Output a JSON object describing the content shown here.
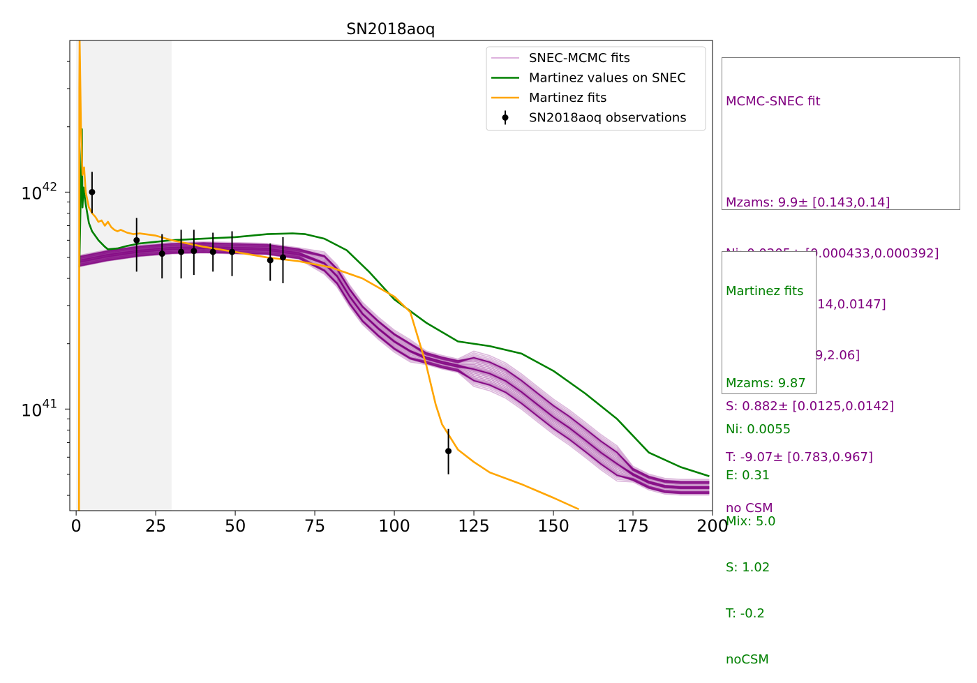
{
  "chart_data": {
    "type": "line",
    "title": "SN2018aoq",
    "xlabel": "",
    "ylabel": "",
    "xlim": [
      -2,
      200
    ],
    "ylim": [
      3.4e+40,
      5e+42
    ],
    "yscale": "log",
    "x_ticks": [
      0,
      25,
      50,
      75,
      100,
      125,
      150,
      175,
      200
    ],
    "x_tick_labels": [
      "0",
      "25",
      "50",
      "75",
      "100",
      "125",
      "150",
      "175",
      "200"
    ],
    "y_ticks": [
      1e+41,
      1e+42
    ],
    "y_tick_labels": [
      {
        "base": "10",
        "exp": "41"
      },
      {
        "base": "10",
        "exp": "42"
      }
    ],
    "shaded_region": {
      "x": [
        0,
        30
      ],
      "color": "#f2f2f2"
    },
    "legend_position": "upper right",
    "legend": [
      {
        "label": "SNEC-MCMC fits",
        "color": "#d8a6d8",
        "kind": "line"
      },
      {
        "label": "Martinez values on SNEC",
        "color": "#008000",
        "kind": "line"
      },
      {
        "label": "Martinez fits",
        "color": "#ffa500",
        "kind": "line"
      },
      {
        "label": "SN2018aoq observations",
        "color": "#000000",
        "kind": "errorbar"
      }
    ],
    "series": [
      {
        "name": "Martinez values on SNEC",
        "color": "#008000",
        "x": [
          1,
          1.5,
          1.8,
          2,
          2.3,
          3,
          4,
          5,
          7,
          9,
          10,
          13,
          16,
          20,
          30,
          40,
          50,
          60,
          68,
          72,
          78,
          85,
          92,
          100,
          110,
          120,
          130,
          140,
          150,
          160,
          170,
          180,
          190,
          199
        ],
        "y": [
          4.5e+41,
          1.1e+42,
          1.95e+42,
          8.5e+41,
          1.05e+42,
          8.8e+41,
          7.2e+41,
          6.6e+41,
          6e+41,
          5.6e+41,
          5.45e+41,
          5.5e+41,
          5.65e+41,
          5.8e+41,
          6e+41,
          6.1e+41,
          6.2e+41,
          6.4e+41,
          6.45e+41,
          6.4e+41,
          6.1e+41,
          5.4e+41,
          4.3e+41,
          3.2e+41,
          2.5e+41,
          2.05e+41,
          1.95e+41,
          1.8e+41,
          1.5e+41,
          1.18e+41,
          9e+40,
          6.3e+40,
          5.4e+40,
          4.9e+40
        ]
      },
      {
        "name": "Martinez fits",
        "color": "#ffa500",
        "x": [
          0.9,
          1.0,
          1.1,
          1.2,
          1.5,
          2,
          2.5,
          3,
          4,
          5,
          6,
          7,
          8,
          9,
          10,
          11,
          12,
          13,
          14,
          16,
          18,
          20,
          25,
          30,
          40,
          50,
          60,
          70,
          80,
          90,
          100,
          105,
          110,
          113,
          115,
          120,
          125,
          130,
          140,
          150,
          158
        ],
        "y": [
          3.4e+40,
          3e+42,
          5e+42,
          4e+42,
          2e+42,
          1.2e+42,
          1.3e+42,
          1e+42,
          8.5e+41,
          8e+41,
          7.7e+41,
          7.3e+41,
          7.4e+41,
          7e+41,
          7.3e+41,
          6.9e+41,
          6.7e+41,
          6.6e+41,
          6.7e+41,
          6.5e+41,
          6.4e+41,
          6.45e+41,
          6.3e+41,
          6e+41,
          5.6e+41,
          5.3e+41,
          5e+41,
          4.8e+41,
          4.5e+41,
          4e+41,
          3.3e+41,
          2.8e+41,
          1.6e+41,
          1.05e+41,
          8.5e+40,
          6.5e+40,
          5.7e+40,
          5.1e+40,
          4.5e+40,
          3.9e+40,
          3.45e+40
        ]
      },
      {
        "name": "SN2018aoq observations",
        "color": "#000000",
        "kind": "errorbar",
        "x": [
          5,
          19,
          27,
          33,
          37,
          43,
          49,
          61,
          65,
          117
        ],
        "y": [
          1e+42,
          6e+41,
          5.2e+41,
          5.3e+41,
          5.35e+41,
          5.3e+41,
          5.3e+41,
          4.85e+41,
          5e+41,
          6.4e+40
        ],
        "y_low": [
          8e+41,
          4.3e+41,
          4e+41,
          4e+41,
          4.15e+41,
          4.3e+41,
          4.1e+41,
          3.9e+41,
          3.8e+41,
          5e+40
        ],
        "y_high": [
          1.24e+42,
          7.6e+41,
          6.4e+41,
          6.7e+41,
          6.7e+41,
          6.5e+41,
          6.6e+41,
          5.8e+41,
          6.2e+41,
          8.1e+40
        ]
      }
    ],
    "mcmc_band": {
      "name": "SNEC-MCMC fits",
      "color": "#800080",
      "x": [
        1,
        10,
        20,
        30,
        40,
        50,
        60,
        70,
        78,
        82,
        86,
        90,
        95,
        100,
        105,
        110,
        115,
        120,
        125,
        130,
        135,
        140,
        145,
        150,
        155,
        160,
        165,
        170,
        175,
        180,
        185,
        190,
        199
      ],
      "y": [
        4.8e+41,
        5.1e+41,
        5.35e+41,
        5.5e+41,
        5.55e+41,
        5.5e+41,
        5.45e+41,
        5.2e+41,
        4.7e+41,
        4.1e+41,
        3.3e+41,
        2.75e+41,
        2.35e+41,
        2.05e+41,
        1.85e+41,
        1.72e+41,
        1.64e+41,
        1.58e+41,
        1.53e+41,
        1.46e+41,
        1.35e+41,
        1.2e+41,
        1.05e+41,
        9.2e+40,
        8.2e+40,
        7.2e+40,
        6.3e+40,
        5.6e+40,
        5e+40,
        4.6e+40,
        4.4e+40,
        4.35e+40,
        4.35e+40
      ]
    }
  },
  "info_boxes": {
    "mcmc": {
      "color": "#800080",
      "lines": [
        "MCMC-SNEC fit",
        "",
        "Mzams: 9.9± [0.143,0.14]",
        "Ni: 0.0205± [0.000433,0.000392]",
        "E: 0.319± [0.014,0.0147]",
        "Mix: 3.4± [1.29,2.06]",
        "S: 0.882± [0.0125,0.0142]",
        "T: -9.07± [0.783,0.967]",
        "no CSM"
      ]
    },
    "martinez": {
      "color": "#008000",
      "lines": [
        "Martinez fits",
        "",
        "Mzams: 9.87",
        "Ni: 0.0055",
        "E: 0.31",
        "Mix: 5.0",
        "S: 1.02",
        "T: -0.2",
        "noCSM"
      ]
    }
  }
}
